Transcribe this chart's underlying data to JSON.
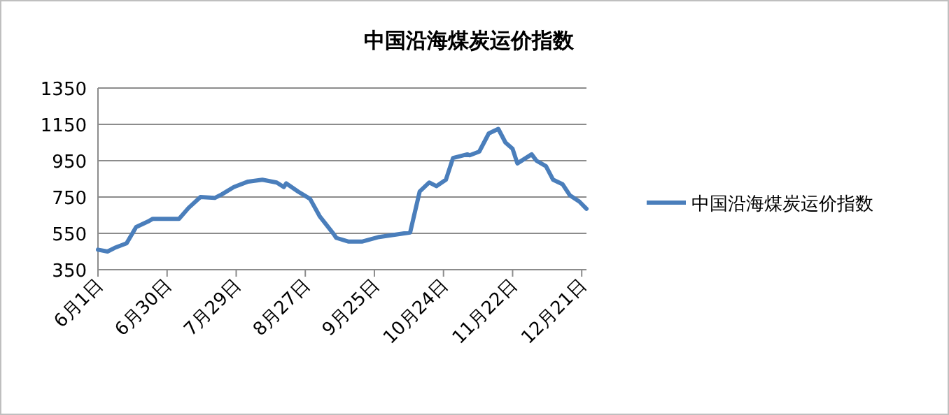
{
  "chart_data": {
    "type": "line",
    "title": "中国沿海煤炭运价指数",
    "x": [
      "--06-01",
      "--06-05",
      "--06-08",
      "--06-13",
      "--06-17",
      "--06-22",
      "--06-24",
      "--07-05",
      "--07-09",
      "--07-14",
      "--07-20",
      "--07-23",
      "--07-28",
      "--08-03",
      "--08-09",
      "--08-15",
      "--08-18",
      "--08-19",
      "--08-24",
      "--08-29",
      "--09-02",
      "--09-08",
      "--09-09",
      "--09-14",
      "--09-20",
      "--09-27",
      "--10-10",
      "--10-14",
      "--10-18",
      "--10-21",
      "--10-25",
      "--10-28",
      "--11-03",
      "--11-04",
      "--11-08",
      "--11-12",
      "--11-16",
      "--11-19",
      "--11-22",
      "--11-24",
      "--11-30",
      "--12-02",
      "--12-06",
      "--12-09",
      "--12-13",
      "--12-16",
      "--12-20",
      "--12-23"
    ],
    "series": [
      {
        "name": "中国沿海煤炭运价指数",
        "color": "#4a7ebb",
        "values": [
          460,
          450,
          470,
          495,
          585,
          615,
          630,
          630,
          690,
          750,
          745,
          765,
          805,
          835,
          845,
          830,
          805,
          825,
          780,
          740,
          645,
          545,
          525,
          505,
          505,
          530,
          555,
          780,
          830,
          810,
          845,
          965,
          985,
          980,
          1000,
          1100,
          1125,
          1050,
          1015,
          935,
          985,
          950,
          920,
          845,
          820,
          760,
          725,
          685
        ]
      }
    ],
    "xlim": [
      "--06-01",
      "--12-23"
    ],
    "xticks": [
      {
        "value": "--06-01",
        "label": "6月1日"
      },
      {
        "value": "--06-30",
        "label": "6月30日"
      },
      {
        "value": "--07-29",
        "label": "7月29日"
      },
      {
        "value": "--08-27",
        "label": "8月27日"
      },
      {
        "value": "--09-25",
        "label": "9月25日"
      },
      {
        "value": "--10-24",
        "label": "10月24日"
      },
      {
        "value": "--11-22",
        "label": "11月22日"
      },
      {
        "value": "--12-21",
        "label": "12月21日"
      }
    ],
    "ylim": [
      350,
      1350
    ],
    "yticks": [
      350,
      550,
      750,
      950,
      1150,
      1350
    ],
    "grid": "y",
    "legend": "right",
    "marker": "none",
    "line_style": "solid"
  }
}
